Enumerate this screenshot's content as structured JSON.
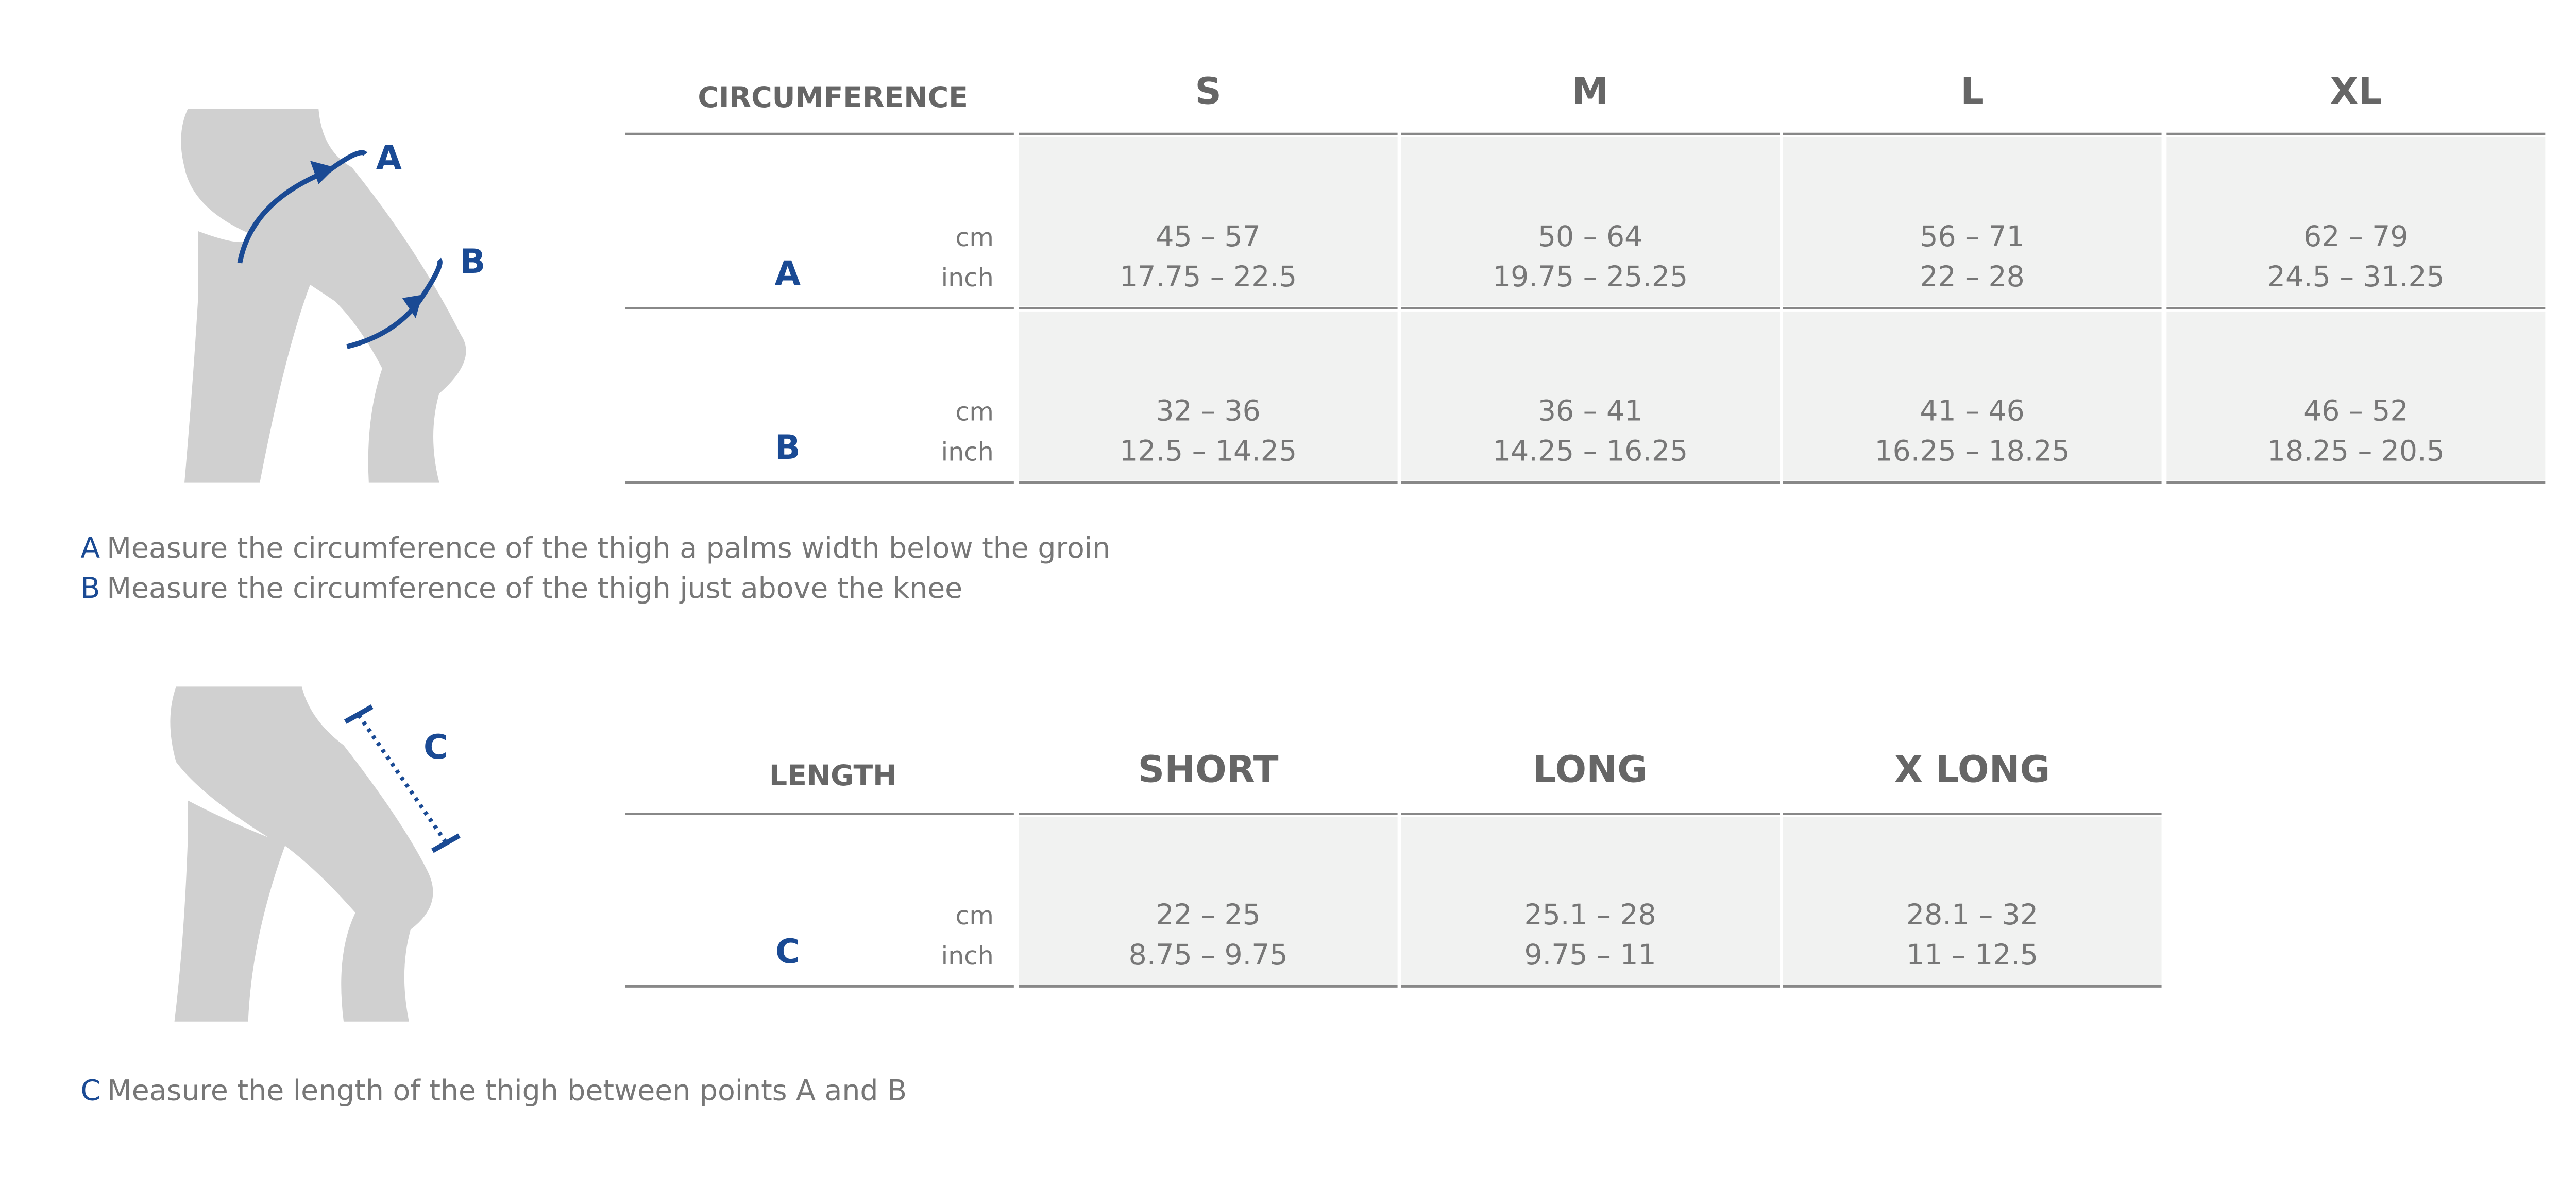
{
  "figures": [
    {
      "labels": [
        "A",
        "B"
      ]
    },
    {
      "labels": [
        "C"
      ]
    }
  ],
  "circumference_table": {
    "header": "CIRCUMFERENCE",
    "columns": [
      "S",
      "M",
      "L",
      "XL"
    ],
    "rows": [
      {
        "label": "A",
        "units": [
          "cm",
          "inch"
        ],
        "cells": [
          [
            "45 – 57",
            "17.75 – 22.5"
          ],
          [
            "50 – 64",
            "19.75 – 25.25"
          ],
          [
            "56 – 71",
            "22 – 28"
          ],
          [
            "62 – 79",
            "24.5 – 31.25"
          ]
        ]
      },
      {
        "label": "B",
        "units": [
          "cm",
          "inch"
        ],
        "cells": [
          [
            "32 – 36",
            "12.5 – 14.25"
          ],
          [
            "36 – 41",
            "14.25 – 16.25"
          ],
          [
            "41 – 46",
            "16.25 – 18.25"
          ],
          [
            "46 – 52",
            "18.25 – 20.5"
          ]
        ]
      }
    ]
  },
  "circumference_notes": [
    {
      "letter": "A",
      "text": "Measure the circumference of the thigh a palms width below the groin"
    },
    {
      "letter": "B",
      "text": "Measure the circumference of the thigh just above the knee"
    }
  ],
  "length_table": {
    "header": "LENGTH",
    "columns": [
      "SHORT",
      "LONG",
      "X LONG"
    ],
    "rows": [
      {
        "label": "C",
        "units": [
          "cm",
          "inch"
        ],
        "cells": [
          [
            "22 – 25",
            "8.75 – 9.75"
          ],
          [
            "25.1 – 28",
            "9.75 – 11"
          ],
          [
            "28.1 – 32",
            "11 – 12.5"
          ]
        ]
      }
    ]
  },
  "length_notes": [
    {
      "letter": "C",
      "text": "Measure the length of the thigh between points A and B"
    }
  ]
}
